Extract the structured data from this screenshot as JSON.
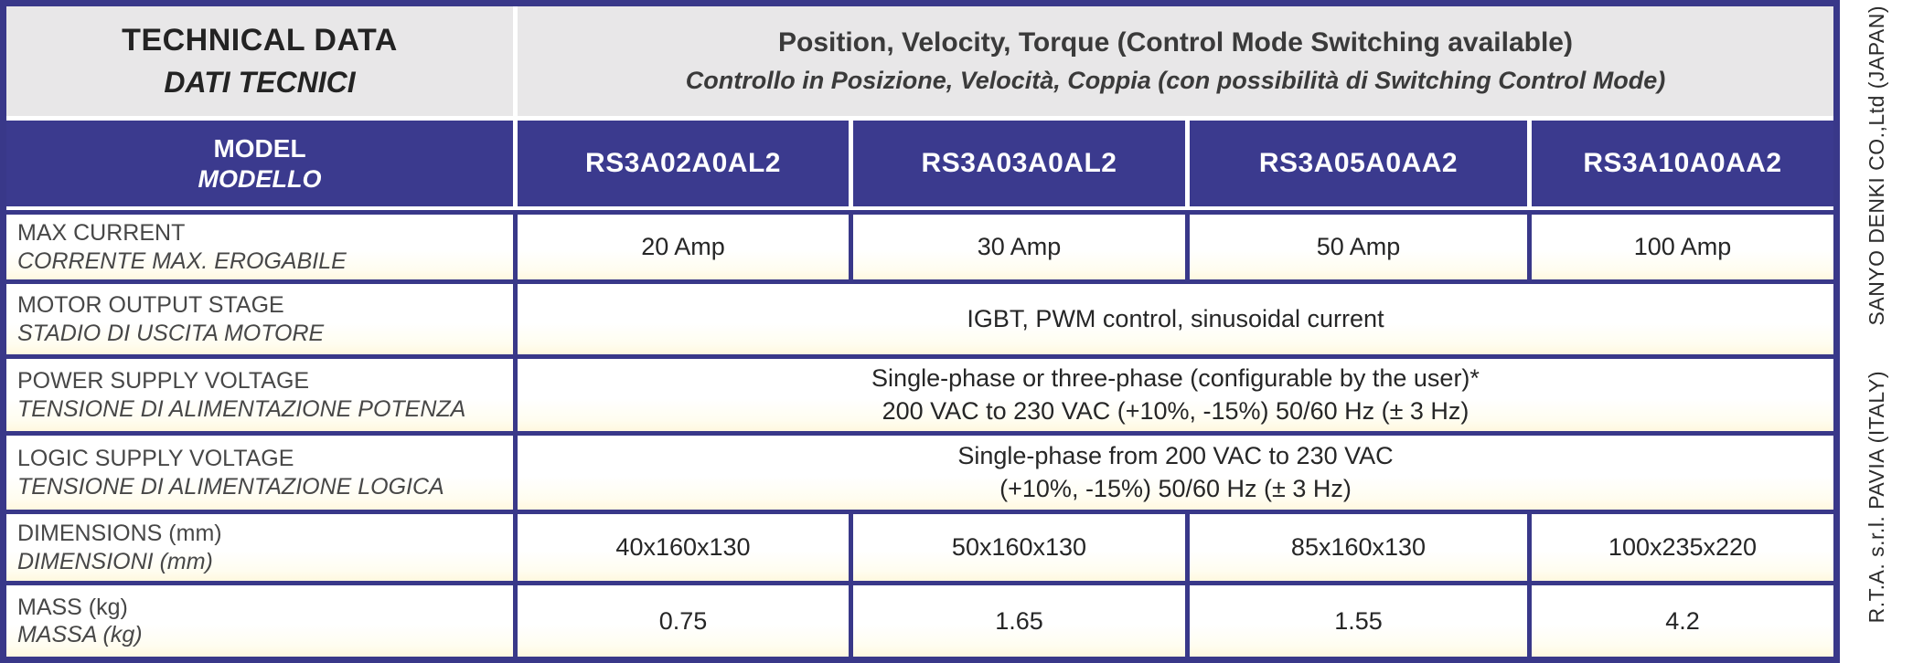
{
  "colors": {
    "grid_indigo": "#393889",
    "header_blue": "#3b3a8e",
    "header_gray": "#e8e7e8",
    "cell_cream": "#fff8df",
    "text_dark": "#262626",
    "text_label": "#474747",
    "separator_white": "#ffffff"
  },
  "table": {
    "header": {
      "title_en": "TECHNICAL DATA",
      "title_it": "DATI TECNICI",
      "control_en": "Position, Velocity, Torque (Control Mode Switching available)",
      "control_it": "Controllo in Posizione, Velocità, Coppia (con possibilità di Switching Control Mode)"
    },
    "model_row": {
      "label_en": "MODEL",
      "label_it": "MODELLO",
      "models": [
        "RS3A02A0AL2",
        "RS3A03A0AL2",
        "RS3A05A0AA2",
        "RS3A10A0AA2"
      ]
    },
    "rows": [
      {
        "label_en": "MAX CURRENT",
        "label_it": "CORRENTE MAX. EROGABILE",
        "values": [
          "20 Amp",
          "30 Amp",
          "50 Amp",
          "100 Amp"
        ]
      },
      {
        "label_en": "MOTOR OUTPUT STAGE",
        "label_it": "STADIO DI USCITA MOTORE",
        "lines": [
          "IGBT, PWM control, sinusoidal current"
        ]
      },
      {
        "label_en": "POWER SUPPLY VOLTAGE",
        "label_it": "TENSIONE DI ALIMENTAZIONE POTENZA",
        "lines": [
          "Single-phase or three-phase (configurable by the user)*",
          "200 VAC to 230 VAC (+10%, -15%) 50/60 Hz (± 3 Hz)"
        ]
      },
      {
        "label_en": "LOGIC SUPPLY VOLTAGE",
        "label_it": "TENSIONE DI ALIMENTAZIONE LOGICA",
        "lines": [
          "Single-phase from 200 VAC to 230 VAC",
          "(+10%, -15%) 50/60 Hz (± 3 Hz)"
        ]
      },
      {
        "label_en": "DIMENSIONS (mm)",
        "label_it": "DIMENSIONI (mm)",
        "values": [
          "40x160x130",
          "50x160x130",
          "85x160x130",
          "100x235x220"
        ]
      },
      {
        "label_en": "MASS (kg)",
        "label_it": "MASSA (kg)",
        "values": [
          "0.75",
          "1.65",
          "1.55",
          "4.2"
        ]
      }
    ]
  },
  "side_notes": {
    "top": "SANYO DENKI CO.,Ltd (JAPAN)",
    "bottom": "R.T.A. s.r.l. PAVIA (ITALY)"
  }
}
